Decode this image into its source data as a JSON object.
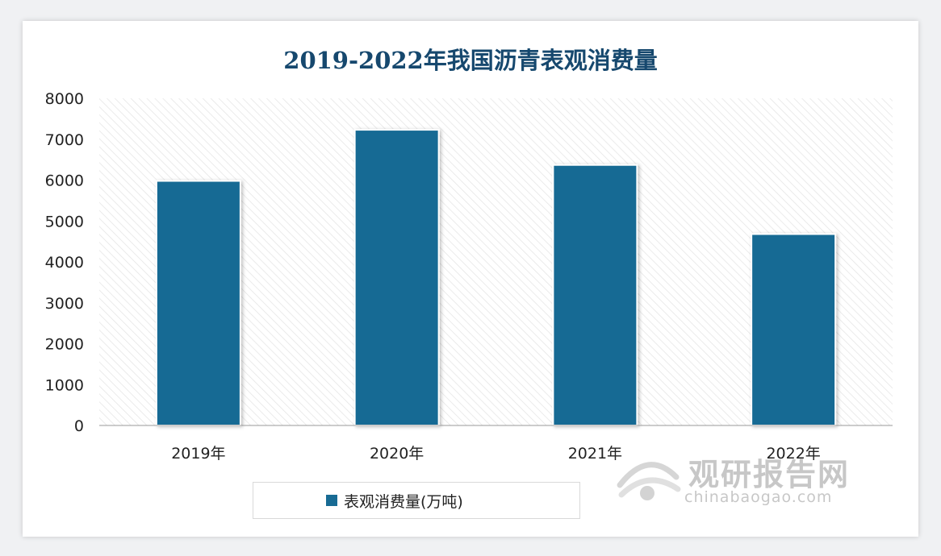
{
  "chart_data": {
    "type": "bar",
    "title": "2019-2022年我国沥青表观消费量",
    "categories": [
      "2019年",
      "2020年",
      "2021年",
      "2022年"
    ],
    "series": [
      {
        "name": "表观消费量(万吨)",
        "values": [
          5980,
          7230,
          6370,
          4680
        ]
      }
    ],
    "ylim": [
      0,
      8000
    ],
    "yticks": [
      0,
      1000,
      2000,
      3000,
      4000,
      5000,
      6000,
      7000,
      8000
    ],
    "grid": false,
    "legend": "bottom-center",
    "bar_color": "#186b94"
  },
  "watermark": {
    "cn": "观研报告网",
    "en": "chinabaogao.com"
  }
}
